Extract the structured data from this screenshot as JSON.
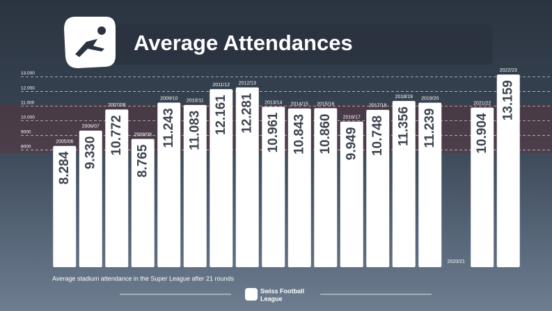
{
  "chart_data": {
    "type": "bar",
    "title": "Average Attendances",
    "footnote": "Average stadium attendance in the Super League after 21 rounds",
    "brand": [
      "Swiss Football",
      "League"
    ],
    "categories": [
      "2005/06",
      "2006/07",
      "2007/08",
      "2008/09",
      "2009/10",
      "2010/11",
      "2011/12",
      "2012/13",
      "2013/14",
      "2014/15",
      "2015/16",
      "2016/17",
      "2017/18",
      "2018/19",
      "2019/20",
      "2020/21",
      "2021/22",
      "2022/23"
    ],
    "values": [
      8284,
      9330,
      10772,
      8765,
      11243,
      11083,
      12161,
      12281,
      10961,
      10843,
      10860,
      9949,
      10748,
      11356,
      11239,
      null,
      10904,
      13159
    ],
    "value_labels": [
      "8.284",
      "9.330",
      "10.772",
      "8.765",
      "11.243",
      "11.083",
      "12.161",
      "12.281",
      "10.961",
      "10.843",
      "10.860",
      "9.949",
      "10.748",
      "11.356",
      "11.239",
      null,
      "10.904",
      "13.159"
    ],
    "color": "#ffffff",
    "ylim": [
      0,
      13500
    ],
    "yticks": [
      8000,
      9000,
      {
        "value": 10000,
        "label": "10.000"
      },
      {
        "value": 11000,
        "label": "11.000"
      },
      {
        "value": 12000,
        "label": "12.000"
      },
      {
        "value": 13000,
        "label": "13.000"
      }
    ],
    "grid": true
  }
}
